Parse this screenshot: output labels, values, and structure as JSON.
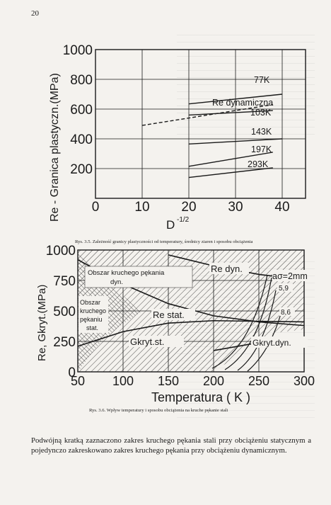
{
  "page_number": "20",
  "figure1": {
    "caption": "Rys. 3.5. Zależność granicy plastyczności od temperatury, średnicy ziaren i sposobu obciążenia",
    "ylabel": "Re - Granica plastyczn.(MPa)",
    "xlabel_main": "D",
    "xlabel_exp": "-1/2",
    "legend_label": "Re dynamiczna",
    "labels": [
      "77K",
      "103K",
      "143K",
      "197K",
      "293K"
    ]
  },
  "figure2": {
    "caption": "Rys. 3.6. Wpływ temperatury i sposobu obciążenia na kruche pękanie stali",
    "ylabel": "Re, Gkryt.(MPa)",
    "xlabel": "Temperatura ( K )",
    "regions": {
      "dynamic_line1": "Obszar kruchego pękania",
      "dynamic_line2": "dyn.",
      "static_line1": "Obszar",
      "static_line2": "kruchego",
      "static_line3": "pękaniu",
      "static_line4": "stat."
    },
    "curve_labels": {
      "re_dyn": "Re dyn.",
      "re_stat": "Re stat.",
      "kryt_st": "Gkryt.st.",
      "kryt_dyn": "Gkryt.dyn.",
      "a_sigma": "aσ=2mm",
      "v59": "5,9",
      "v86": "8,6"
    }
  },
  "body_text": "Podwójną kratką zaznaczono zakres kruchego pękania stali przy obciążeniu statycznym a pojedynczo zakreskowano zakres kruchego pękania przy obciążeniu dynamicznym.",
  "chart_data": [
    {
      "type": "line",
      "title": "",
      "xlabel": "D^-1/2",
      "ylabel": "Re - Granica plastyczn.(MPa)",
      "xlim": [
        0,
        45
      ],
      "ylim": [
        0,
        1000
      ],
      "xticks": [
        0,
        10,
        20,
        30,
        40
      ],
      "yticks": [
        200,
        400,
        600,
        800,
        1000
      ],
      "series": [
        {
          "name": "77K",
          "x": [
            20,
            40
          ],
          "y": [
            635,
            700
          ]
        },
        {
          "name": "Re dynamiczna",
          "x": [
            10,
            38
          ],
          "y": [
            490,
            630
          ]
        },
        {
          "name": "103K",
          "x": [
            20,
            38
          ],
          "y": [
            560,
            590
          ]
        },
        {
          "name": "143K",
          "x": [
            20,
            40
          ],
          "y": [
            365,
            400
          ]
        },
        {
          "name": "197K",
          "x": [
            20,
            38
          ],
          "y": [
            215,
            310
          ]
        },
        {
          "name": "293K",
          "x": [
            20,
            38
          ],
          "y": [
            140,
            205
          ]
        }
      ]
    },
    {
      "type": "line",
      "title": "",
      "xlabel": "Temperatura ( K )",
      "ylabel": "Re, Gkryt.(MPa)",
      "xlim": [
        50,
        300
      ],
      "ylim": [
        0,
        1000
      ],
      "xticks": [
        50,
        100,
        150,
        200,
        250,
        300
      ],
      "yticks": [
        0,
        250,
        500,
        750,
        1000
      ],
      "series": [
        {
          "name": "Re dyn.",
          "x": [
            150,
            200,
            250,
            300
          ],
          "y": [
            960,
            870,
            800,
            755
          ]
        },
        {
          "name": "Re stat.",
          "x": [
            50,
            100,
            150,
            200,
            250,
            300
          ],
          "y": [
            920,
            720,
            560,
            460,
            410,
            380
          ]
        },
        {
          "name": "Gkryt.st.",
          "x": [
            50,
            100,
            150,
            200,
            250,
            300
          ],
          "y": [
            210,
            330,
            400,
            420,
            415,
            410
          ]
        },
        {
          "name": "Gkryt.dyn.",
          "x": [
            200,
            250,
            300
          ],
          "y": [
            175,
            240,
            240
          ]
        }
      ]
    }
  ]
}
